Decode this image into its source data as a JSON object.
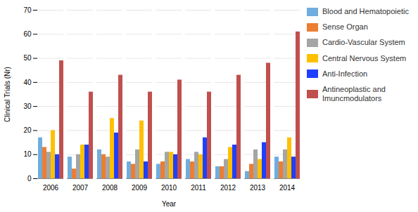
{
  "chart_data": {
    "type": "bar",
    "xlabel": "Year",
    "ylabel": "Clinical Trials (Nr)",
    "categories": [
      "2006",
      "2007",
      "2008",
      "2009",
      "2010",
      "2011",
      "2012",
      "2013",
      "2014"
    ],
    "series": [
      {
        "name": "Blood and Hematopoietic",
        "color": "#70ADDE",
        "values": [
          17,
          9,
          12,
          7,
          6,
          8,
          5,
          3,
          9
        ]
      },
      {
        "name": "Sense Organ",
        "color": "#ED7D31",
        "values": [
          13,
          4,
          10,
          6,
          7,
          7,
          5,
          6,
          7
        ]
      },
      {
        "name": "Cardio-Vascular System",
        "color": "#A5A5A5",
        "values": [
          11,
          10,
          9,
          12,
          11,
          11,
          8,
          12,
          12
        ]
      },
      {
        "name": "Central Nervous System",
        "color": "#FFC000",
        "values": [
          20,
          14,
          25,
          24,
          11,
          10,
          13,
          8,
          17
        ]
      },
      {
        "name": "Anti-Infection",
        "color": "#1F3FFF",
        "values": [
          10,
          14,
          19,
          7,
          10,
          17,
          14,
          15,
          9
        ]
      },
      {
        "name": "Antineoplastic and\nImuncmodulators",
        "color": "#C0504D",
        "values": [
          49,
          36,
          43,
          36,
          41,
          36,
          43,
          48,
          61
        ]
      }
    ],
    "ylim": [
      0,
      70
    ],
    "yticks": [
      0,
      10,
      20,
      30,
      40,
      50,
      60,
      70
    ],
    "grid": true,
    "legend": "right"
  }
}
